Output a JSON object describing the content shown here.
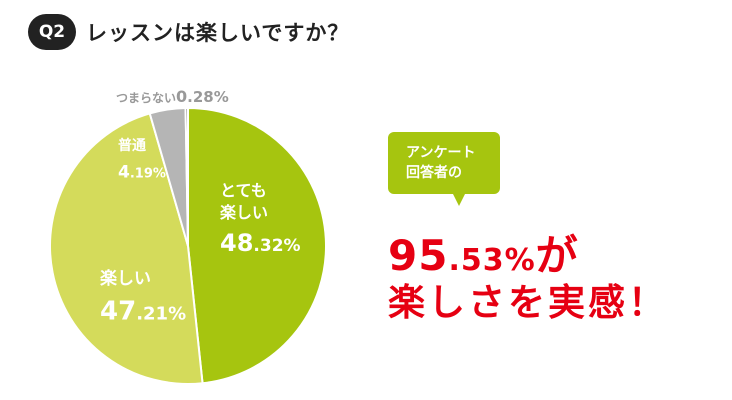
{
  "header": {
    "badge": "Q2",
    "title": "レッスンは楽しいですか？"
  },
  "chart_data": {
    "type": "pie",
    "slices": [
      {
        "label": "とても楽しい",
        "value": 48.32,
        "color": "#a6c50f",
        "lines": [
          "とても",
          "楽しい"
        ],
        "value_big": "48",
        "value_small": ".32%"
      },
      {
        "label": "楽しい",
        "value": 47.21,
        "color": "#d4db5b",
        "lines": [
          "楽しい"
        ],
        "value_big": "47",
        "value_small": ".21%"
      },
      {
        "label": "普通",
        "value": 4.19,
        "color": "#b5b5b5",
        "lines": [
          "普通"
        ],
        "value_big": "4",
        "value_small": ".19%"
      },
      {
        "label": "つまらない",
        "value": 0.28,
        "color": "#555555",
        "lines": [
          "つまらない"
        ],
        "value_big": "0",
        "value_small": ".28%"
      }
    ]
  },
  "callout": {
    "bubble_lines": [
      "アンケート",
      "回答者の"
    ],
    "percent_big": "95",
    "percent_small": ".53%",
    "suffix": "が",
    "line2": "楽しさを実感！"
  }
}
